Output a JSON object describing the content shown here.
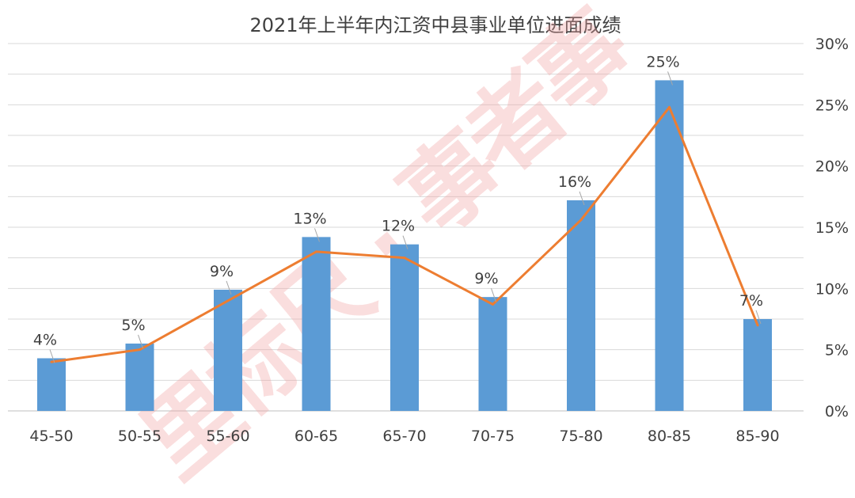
{
  "chart_data": {
    "type": "bar",
    "title": "2021年上半年内江资中县事业单位进面成绩",
    "categories": [
      "45-50",
      "50-55",
      "55-60",
      "60-65",
      "65-70",
      "70-75",
      "75-80",
      "80-85",
      "85-90"
    ],
    "series": [
      {
        "kind": "bar",
        "values": [
          4.3,
          5.5,
          9.9,
          14.2,
          13.6,
          9.3,
          17.2,
          27,
          7.5
        ],
        "color": "#5b9bd5"
      },
      {
        "kind": "line",
        "values": [
          4,
          5,
          9,
          13,
          12.5,
          8.7,
          15.6,
          24.8,
          7
        ],
        "color": "#ed7d31"
      }
    ],
    "data_labels": [
      "4%",
      "5%",
      "9%",
      "13%",
      "12%",
      "9%",
      "16%",
      "25%",
      "7%"
    ],
    "y_axis": {
      "position": "right",
      "ylim": [
        0,
        30
      ],
      "ticks": [
        "0%",
        "5%",
        "10%",
        "15%",
        "20%",
        "25%",
        "30%"
      ]
    },
    "grid": true,
    "legend": "none",
    "watermark": "里标尺·事者事"
  }
}
